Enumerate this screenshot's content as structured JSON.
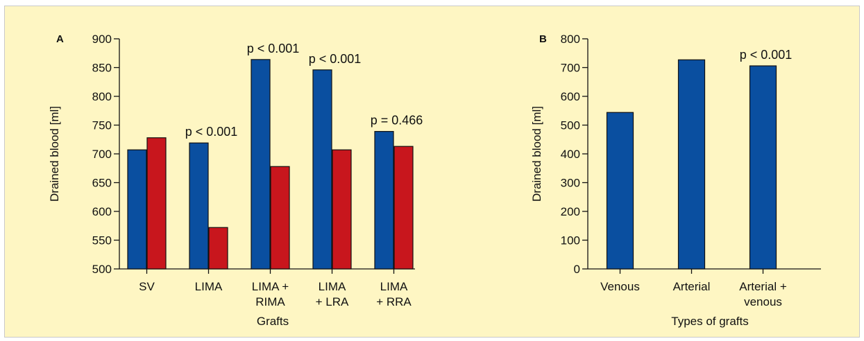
{
  "chart_data": [
    {
      "type": "bar",
      "panel_label": "A",
      "categories": [
        [
          "SV"
        ],
        [
          "LIMA"
        ],
        [
          "LIMA +",
          "RIMA"
        ],
        [
          "LIMA",
          "+ LRA"
        ],
        [
          "LIMA",
          "+ RRA"
        ]
      ],
      "series": [
        {
          "color": "#0a4fa0",
          "values": [
            707,
            719,
            864,
            846,
            739
          ]
        },
        {
          "color": "#c8161d",
          "values": [
            728,
            572,
            678,
            707,
            713
          ]
        }
      ],
      "annotations": [
        "",
        "p < 0.001",
        "p < 0.001",
        "p < 0.001",
        "p = 0.466"
      ],
      "xlabel": "Grafts",
      "ylabel": "Drained blood [ml]",
      "ylim": [
        500,
        900
      ],
      "yticks": [
        500,
        550,
        600,
        650,
        700,
        750,
        800,
        850,
        900
      ],
      "grid": false
    },
    {
      "type": "bar",
      "panel_label": "B",
      "categories": [
        [
          "Venous"
        ],
        [
          "Arterial"
        ],
        [
          "Arterial +",
          "venous"
        ]
      ],
      "series": [
        {
          "color": "#0a4fa0",
          "values": [
            544,
            727,
            706
          ]
        }
      ],
      "annotations": [
        "",
        "",
        "p < 0.001"
      ],
      "xlabel": "Types of grafts",
      "ylabel": "Drained blood [ml]",
      "ylim": [
        0,
        800
      ],
      "yticks": [
        0,
        100,
        200,
        300,
        400,
        500,
        600,
        700,
        800
      ],
      "grid": false
    }
  ]
}
